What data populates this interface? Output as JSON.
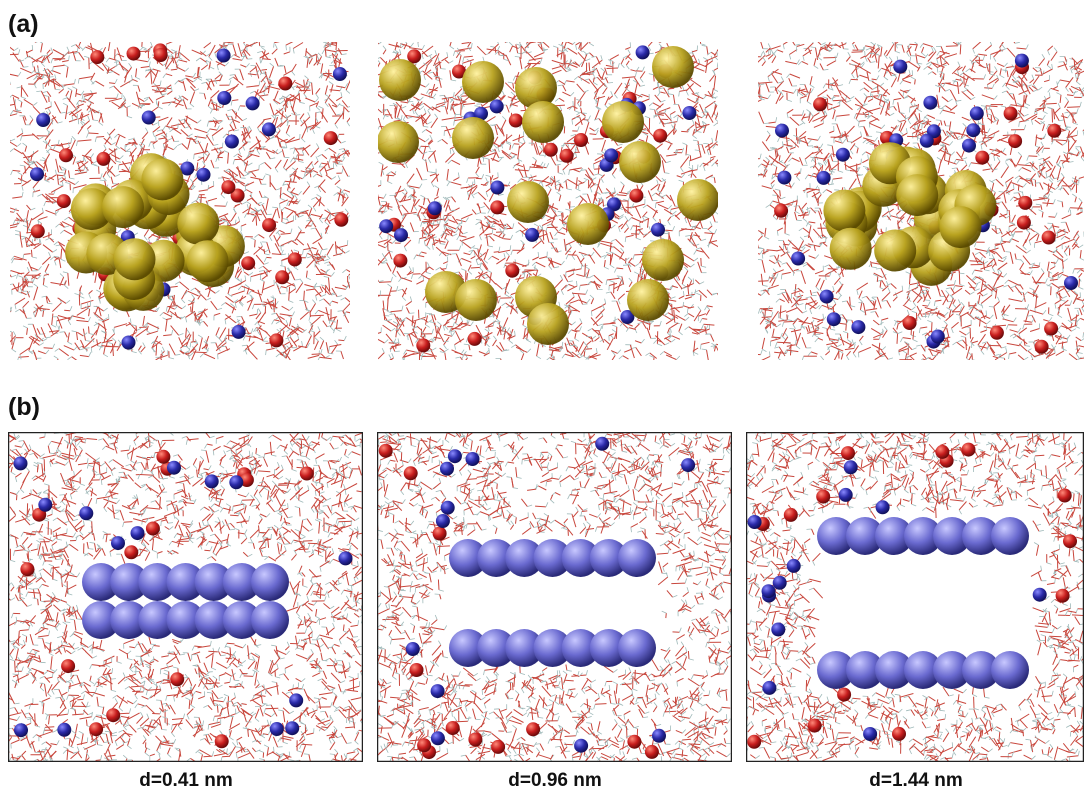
{
  "figure": {
    "panel_a_label": "(a)",
    "panel_b_label": "(b)",
    "captions": [
      "d=0.41 nm",
      "d=0.96 nm",
      "d=1.44 nm"
    ]
  },
  "colors": {
    "water": "#c8463c",
    "water_h": "#9fb9b9",
    "cation": "#c81e1e",
    "anion": "#2a2aa8",
    "solute_sphere": "#b8a21e",
    "plate": "#6a6ad0",
    "frame": "#222222"
  },
  "icons": [
    "yellow-sphere-cluster",
    "dispersed-yellow-spheres",
    "blue-sphere-plates"
  ]
}
